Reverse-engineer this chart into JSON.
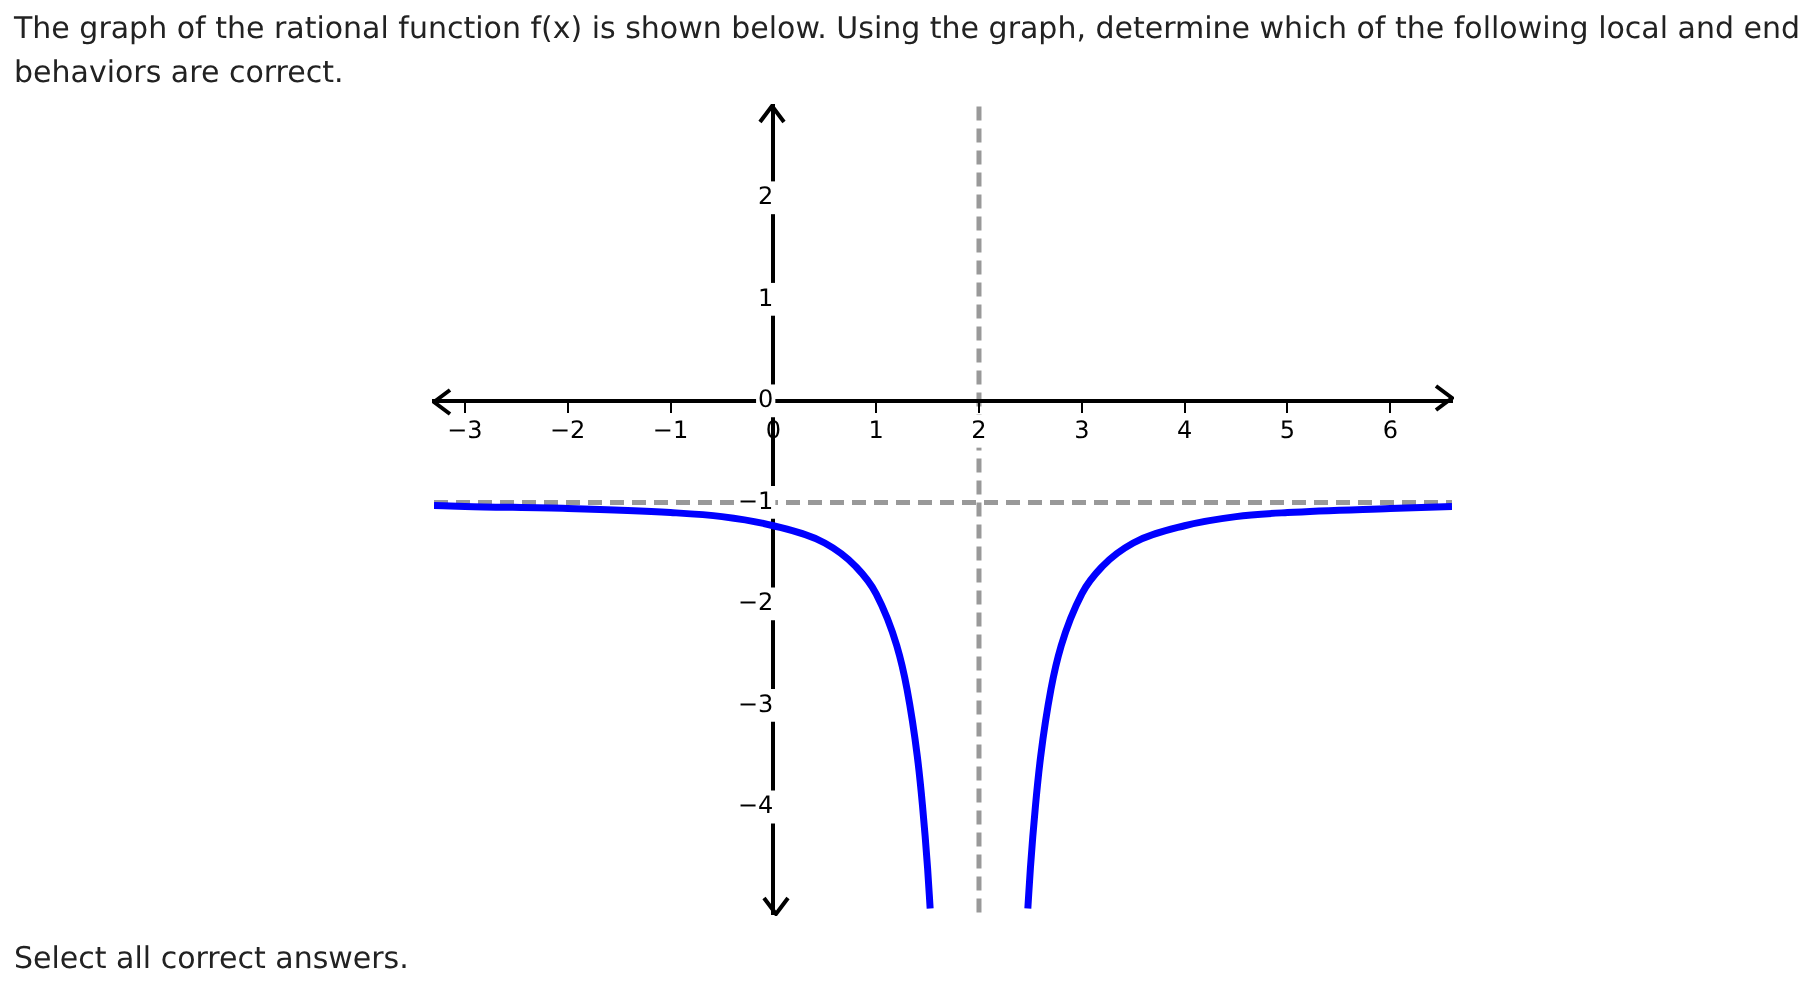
{
  "chart_data": {
    "type": "line",
    "title": "The graph of the rational function f(x) is shown below. Using the graph, determine which of the following local and end behaviors are correct.",
    "annotations": [
      "Select all correct answers."
    ],
    "series": [
      {
        "color": "#0000ff",
        "x": [
          -3.3,
          -3,
          -2,
          -1,
          -0.5,
          0,
          0.5,
          0.8,
          1,
          1.2,
          1.3,
          1.4,
          1.45,
          1.5,
          1.525,
          2,
          2.475,
          2.5,
          2.55,
          2.6,
          2.7,
          2.8,
          3,
          3.2,
          3.5,
          4,
          4.5,
          5,
          6,
          6.6
        ],
        "values": [
          -1.03,
          -1.04,
          -1.06,
          -1.1,
          -1.14,
          -1.23,
          -1.4,
          -1.63,
          -1.9,
          -2.41,
          -2.84,
          -3.5,
          -3.98,
          -4.6,
          -5,
          null,
          -5,
          -4.6,
          -3.98,
          -3.5,
          -2.84,
          -2.41,
          -1.9,
          -1.63,
          -1.4,
          -1.23,
          -1.14,
          -1.1,
          -1.06,
          -1.04
        ]
      }
    ],
    "xlim": [
      -3.3,
      6.6
    ],
    "ylim": [
      -5.05,
      2.9
    ],
    "xticks": [
      -3,
      -2,
      -1,
      0,
      1,
      2,
      3,
      4,
      5,
      6
    ],
    "yticks": [
      -4,
      -3,
      -2,
      -1,
      0,
      1,
      2
    ],
    "ref_lines": [
      {
        "axis": "x",
        "value": 2,
        "color": "#999999",
        "line_style": "dashed"
      },
      {
        "axis": "y",
        "value": -1,
        "color": "#999999",
        "line_style": "dashed"
      }
    ],
    "grid": false,
    "legend": false,
    "marker": "none",
    "line_style": "solid"
  }
}
